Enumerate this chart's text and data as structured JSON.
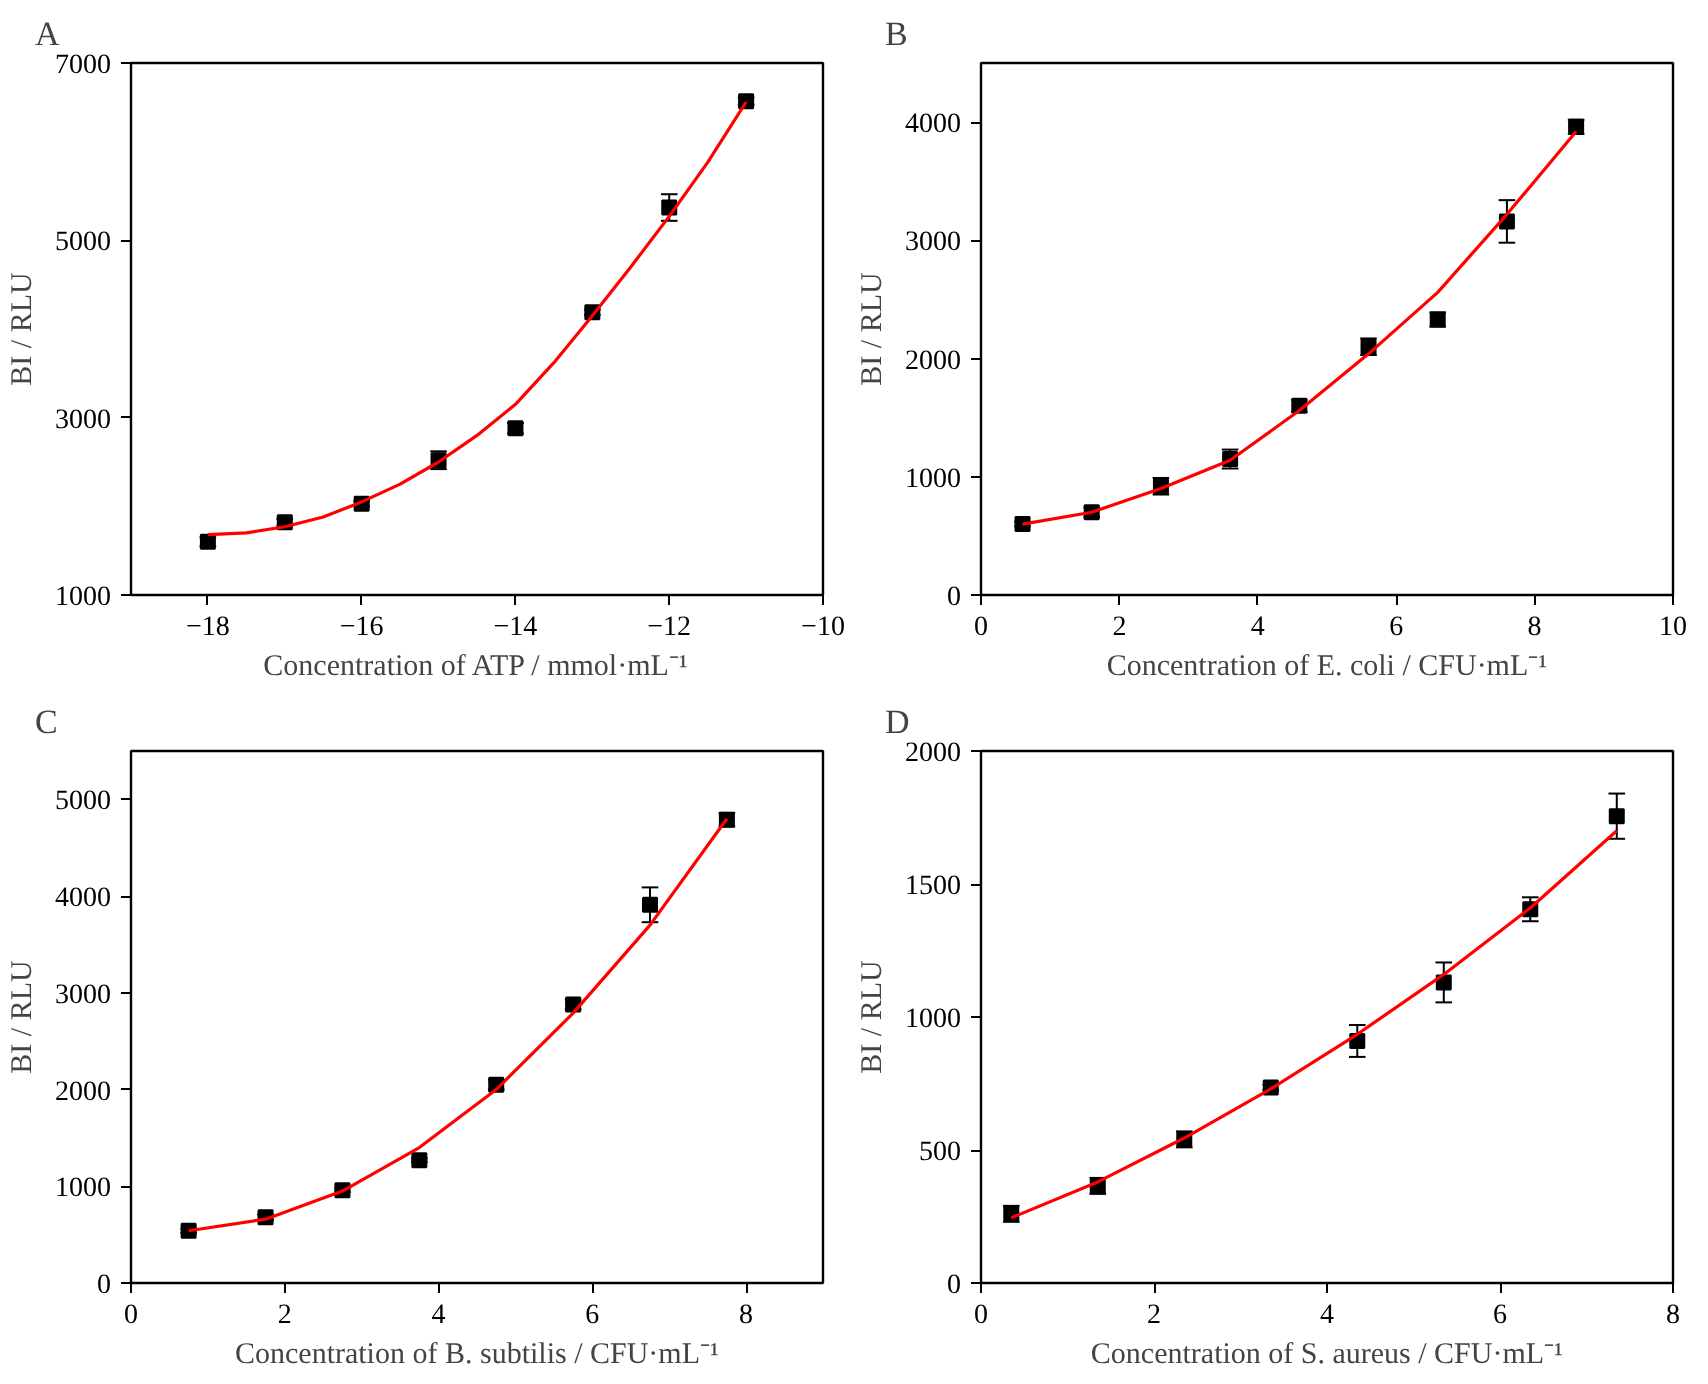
{
  "chart_data": [
    {
      "type": "scatter",
      "title": "A",
      "xlabel": "Concentration of ATP / mmol·mL⁻¹",
      "ylabel": "BI / RLU",
      "xlim": [
        -19,
        -10
      ],
      "xticks": [
        -18,
        -16,
        -14,
        -12,
        -10
      ],
      "ylim": [
        1000,
        7000
      ],
      "yticks": [
        1000,
        3000,
        5000,
        7000
      ],
      "grid": false,
      "series": [
        {
          "marker": "square",
          "color": "#000000",
          "x": [
            -18,
            -17,
            -16,
            -15,
            -14,
            -13,
            -12,
            -11
          ],
          "values": [
            1600,
            1820,
            2030,
            2520,
            2880,
            4190,
            5370,
            6570
          ],
          "errors": [
            50,
            40,
            30,
            100,
            60,
            30,
            150,
            40
          ]
        },
        {
          "type": "line",
          "color": "#ff0000",
          "x": [
            -18,
            -17.5,
            -17,
            -16.5,
            -16,
            -15.5,
            -15,
            -14.5,
            -14,
            -13.5,
            -13,
            -12.5,
            -12,
            -11.5,
            -11
          ],
          "values": [
            1680,
            1700,
            1770,
            1880,
            2050,
            2250,
            2500,
            2800,
            3150,
            3620,
            4150,
            4700,
            5270,
            5880,
            6560
          ]
        }
      ]
    },
    {
      "type": "scatter",
      "title": "B",
      "xlabel": "Concentration of E. coli / CFU·mL⁻¹",
      "ylabel": "BI / RLU",
      "xlim": [
        0,
        10
      ],
      "xticks": [
        0,
        2,
        4,
        6,
        8,
        10
      ],
      "ylim": [
        0,
        4500
      ],
      "yticks": [
        0,
        1000,
        2000,
        3000,
        4000
      ],
      "grid": false,
      "series": [
        {
          "marker": "square",
          "color": "#000000",
          "x": [
            0.6,
            1.6,
            2.6,
            3.6,
            4.6,
            5.6,
            6.6,
            7.6,
            8.6
          ],
          "values": [
            600,
            700,
            920,
            1150,
            1600,
            2100,
            2330,
            3160,
            3960
          ],
          "errors": [
            20,
            40,
            70,
            80,
            50,
            70,
            60,
            180,
            60
          ]
        },
        {
          "type": "line",
          "color": "#ff0000",
          "x": [
            0.6,
            1.6,
            2.6,
            3.6,
            4.6,
            5.6,
            6.6,
            7.6,
            8.6
          ],
          "values": [
            600,
            700,
            900,
            1140,
            1560,
            2040,
            2560,
            3220,
            3920
          ]
        }
      ]
    },
    {
      "type": "scatter",
      "title": "C",
      "xlabel": "Concentration of B. subtilis / CFU·mL⁻¹",
      "ylabel": "BI / RLU",
      "xlim": [
        0,
        9
      ],
      "xticks": [
        0,
        2,
        4,
        6,
        8
      ],
      "ylim": [
        0,
        5500
      ],
      "yticks": [
        0,
        1000,
        2000,
        3000,
        4000,
        5000
      ],
      "grid": false,
      "series": [
        {
          "marker": "square",
          "color": "#000000",
          "x": [
            0.75,
            1.75,
            2.75,
            3.75,
            4.75,
            5.75,
            6.75,
            7.75
          ],
          "values": [
            540,
            680,
            960,
            1270,
            2050,
            2880,
            3910,
            4790
          ],
          "errors": [
            20,
            30,
            20,
            20,
            50,
            50,
            180,
            70
          ]
        },
        {
          "type": "line",
          "color": "#ff0000",
          "x": [
            0.75,
            1.75,
            2.75,
            3.75,
            4.75,
            5.75,
            6.75,
            7.75
          ],
          "values": [
            540,
            660,
            950,
            1400,
            2000,
            2790,
            3700,
            4800
          ]
        }
      ]
    },
    {
      "type": "scatter",
      "title": "D",
      "xlabel": "Concentration of S. aureus / CFU·mL⁻¹",
      "ylabel": "BI / RLU",
      "xlim": [
        0,
        8
      ],
      "xticks": [
        0,
        2,
        4,
        6,
        8
      ],
      "ylim": [
        0,
        2000
      ],
      "yticks": [
        0,
        500,
        1000,
        1500,
        2000
      ],
      "grid": false,
      "series": [
        {
          "marker": "square",
          "color": "#000000",
          "x": [
            0.35,
            1.35,
            2.35,
            3.35,
            4.35,
            5.35,
            6.35,
            7.35
          ],
          "values": [
            260,
            365,
            540,
            735,
            910,
            1130,
            1405,
            1755
          ],
          "errors": [
            30,
            30,
            30,
            10,
            60,
            75,
            45,
            85
          ]
        },
        {
          "type": "line",
          "color": "#ff0000",
          "x": [
            0.35,
            1.35,
            2.35,
            3.35,
            4.35,
            5.35,
            6.35,
            7.35
          ],
          "values": [
            245,
            380,
            545,
            730,
            935,
            1160,
            1410,
            1700
          ]
        }
      ]
    }
  ]
}
